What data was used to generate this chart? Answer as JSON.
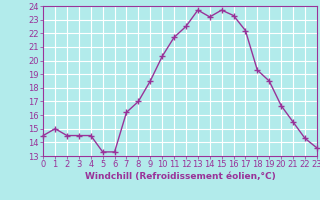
{
  "x": [
    0,
    1,
    2,
    3,
    4,
    5,
    6,
    7,
    8,
    9,
    10,
    11,
    12,
    13,
    14,
    15,
    16,
    17,
    18,
    19,
    20,
    21,
    22,
    23
  ],
  "y": [
    14.5,
    15.0,
    14.5,
    14.5,
    14.5,
    13.3,
    13.3,
    16.2,
    17.0,
    18.5,
    20.3,
    21.7,
    22.5,
    23.7,
    23.2,
    23.7,
    23.3,
    22.2,
    19.3,
    18.5,
    16.7,
    15.5,
    14.3,
    13.6
  ],
  "line_color": "#993399",
  "marker": "+",
  "marker_size": 4,
  "marker_linewidth": 1.0,
  "background_color": "#b2ebeb",
  "grid_color": "#ffffff",
  "xlabel": "Windchill (Refroidissement éolien,°C)",
  "xlabel_color": "#993399",
  "tick_color": "#993399",
  "ylim": [
    13,
    24
  ],
  "yticks": [
    13,
    14,
    15,
    16,
    17,
    18,
    19,
    20,
    21,
    22,
    23,
    24
  ],
  "xticks": [
    0,
    1,
    2,
    3,
    4,
    5,
    6,
    7,
    8,
    9,
    10,
    11,
    12,
    13,
    14,
    15,
    16,
    17,
    18,
    19,
    20,
    21,
    22,
    23
  ],
  "xtick_labels": [
    "0",
    "1",
    "2",
    "3",
    "4",
    "5",
    "6",
    "7",
    "8",
    "9",
    "10",
    "11",
    "12",
    "13",
    "14",
    "15",
    "16",
    "17",
    "18",
    "19",
    "20",
    "21",
    "22",
    "23"
  ],
  "tick_fontsize": 6.0,
  "xlabel_fontsize": 6.5,
  "linewidth": 1.0
}
